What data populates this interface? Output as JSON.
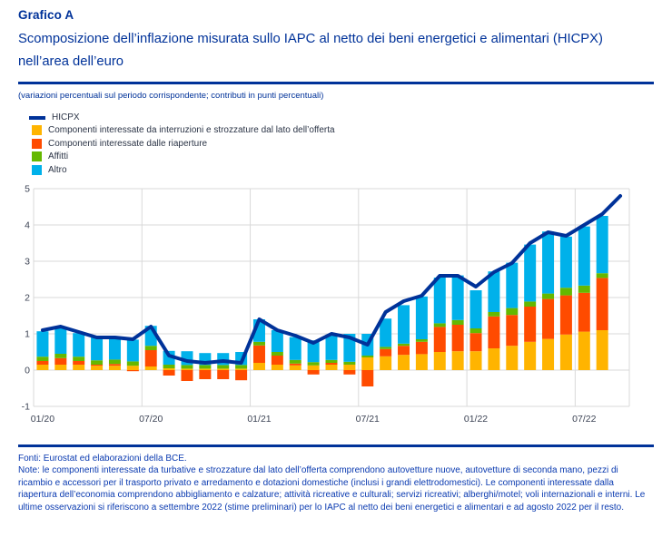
{
  "header": {
    "label": "Grafico A",
    "title": "Scomposizione dell’inflazione misurata sullo IAPC al netto dei beni energetici e alimentari (HICPX) nell’area dell’euro",
    "subtitle": "(variazioni percentuali sul periodo corrispondente; contributi in punti percentuali)"
  },
  "legend": [
    {
      "label": "HICPX",
      "color": "#003299",
      "type": "line"
    },
    {
      "label": "Componenti interessate da interruzioni e strozzature dal lato dell’offerta",
      "color": "#FFB400",
      "type": "box"
    },
    {
      "label": "Componenti interessate dalle riaperture",
      "color": "#FF4B00",
      "type": "box"
    },
    {
      "label": "Affitti",
      "color": "#65B800",
      "type": "box"
    },
    {
      "label": "Altro",
      "color": "#00B1EA",
      "type": "box"
    }
  ],
  "chart_data": {
    "type": "bar",
    "subtype": "stacked-bars-with-line",
    "title": "Scomposizione dell’inflazione misurata sullo IAPC al netto dei beni energetici e alimentari (HICPX) nell’area dell’euro",
    "xlabel": "",
    "ylabel": "",
    "ylim": [
      -1,
      5
    ],
    "yticks": [
      -1,
      0,
      1,
      2,
      3,
      4,
      5
    ],
    "xticks": [
      "01/20",
      "07/20",
      "01/21",
      "07/21",
      "01/22",
      "07/22"
    ],
    "grid": true,
    "legend_position": "top-left",
    "categories": [
      "01/20",
      "02/20",
      "03/20",
      "04/20",
      "05/20",
      "06/20",
      "07/20",
      "08/20",
      "09/20",
      "10/20",
      "11/20",
      "12/20",
      "01/21",
      "02/21",
      "03/21",
      "04/21",
      "05/21",
      "06/21",
      "07/21",
      "08/21",
      "09/21",
      "10/21",
      "11/21",
      "12/21",
      "01/22",
      "02/22",
      "03/22",
      "04/22",
      "05/22",
      "06/22",
      "07/22",
      "08/22"
    ],
    "bar_series": [
      {
        "name": "Componenti interessate da interruzioni e strozzature dal lato dell’offerta",
        "color": "#FFB400",
        "values": [
          0.15,
          0.15,
          0.15,
          0.12,
          0.12,
          0.12,
          0.1,
          0.05,
          0.04,
          0.04,
          0.04,
          0.04,
          0.2,
          0.15,
          0.13,
          0.13,
          0.15,
          0.15,
          0.35,
          0.38,
          0.42,
          0.44,
          0.5,
          0.52,
          0.52,
          0.6,
          0.67,
          0.78,
          0.86,
          0.98,
          1.06,
          1.1
        ]
      },
      {
        "name": "Componenti interessate dalle riaperture",
        "color": "#FF4B00",
        "values": [
          0.1,
          0.18,
          0.1,
          0.03,
          0.05,
          -0.03,
          0.45,
          -0.15,
          -0.3,
          -0.25,
          -0.25,
          -0.28,
          0.48,
          0.25,
          0.05,
          -0.12,
          0.05,
          -0.12,
          -0.45,
          0.2,
          0.25,
          0.34,
          0.69,
          0.73,
          0.5,
          0.88,
          0.85,
          0.97,
          1.1,
          1.08,
          1.07,
          1.44
        ]
      },
      {
        "name": "Affitti",
        "color": "#65B800",
        "values": [
          0.12,
          0.12,
          0.12,
          0.12,
          0.12,
          0.12,
          0.12,
          0.1,
          0.1,
          0.1,
          0.1,
          0.1,
          0.1,
          0.1,
          0.1,
          0.09,
          0.08,
          0.08,
          0.05,
          0.06,
          0.06,
          0.07,
          0.1,
          0.13,
          0.13,
          0.12,
          0.19,
          0.14,
          0.15,
          0.21,
          0.2,
          0.13
        ]
      },
      {
        "name": "Altro",
        "color": "#00B1EA",
        "values": [
          0.7,
          0.75,
          0.65,
          0.63,
          0.62,
          0.6,
          0.55,
          0.38,
          0.38,
          0.33,
          0.33,
          0.36,
          0.62,
          0.6,
          0.63,
          0.6,
          0.7,
          0.77,
          0.6,
          0.78,
          1.06,
          1.18,
          1.26,
          1.23,
          1.05,
          1.12,
          1.25,
          1.57,
          1.71,
          1.41,
          1.63,
          1.58
        ]
      }
    ],
    "line_series": {
      "name": "HICPX",
      "color": "#003299",
      "x": [
        "01/20",
        "02/20",
        "03/20",
        "04/20",
        "05/20",
        "06/20",
        "07/20",
        "08/20",
        "09/20",
        "10/20",
        "11/20",
        "12/20",
        "01/21",
        "02/21",
        "03/21",
        "04/21",
        "05/21",
        "06/21",
        "07/21",
        "08/21",
        "09/21",
        "10/21",
        "11/21",
        "12/21",
        "01/22",
        "02/22",
        "03/22",
        "04/22",
        "05/22",
        "06/22",
        "07/22",
        "08/22",
        "09/22"
      ],
      "values": [
        1.1,
        1.2,
        1.05,
        0.9,
        0.9,
        0.85,
        1.2,
        0.4,
        0.25,
        0.2,
        0.25,
        0.2,
        1.4,
        1.1,
        0.95,
        0.75,
        1.0,
        0.9,
        0.7,
        1.6,
        1.9,
        2.05,
        2.6,
        2.6,
        2.3,
        2.7,
        2.95,
        3.5,
        3.8,
        3.7,
        4.0,
        4.3,
        4.8
      ]
    },
    "style": {
      "gridline_color": "#d9d9d9",
      "tick_text_color": "#3c4354"
    }
  },
  "footer": {
    "source": "Fonti: Eurostat ed elaborazioni della BCE.",
    "note": "Note: le componenti interessate da turbative e strozzature dal lato dell’offerta comprendono autovetture nuove, autovetture di seconda mano, pezzi di ricambio e accessori per il trasporto privato e arredamento e dotazioni domestiche (inclusi i grandi elettrodomestici). Le componenti interessate dalla riapertura dell’economia comprendono abbigliamento e calzature; attività ricreative e culturali; servizi ricreativi; alberghi/motel; voli internazionali e interni. Le ultime osservazioni si riferiscono a settembre 2022 (stime preliminari) per lo IAPC al netto dei beni energetici e alimentari e ad agosto 2022 per il resto."
  }
}
